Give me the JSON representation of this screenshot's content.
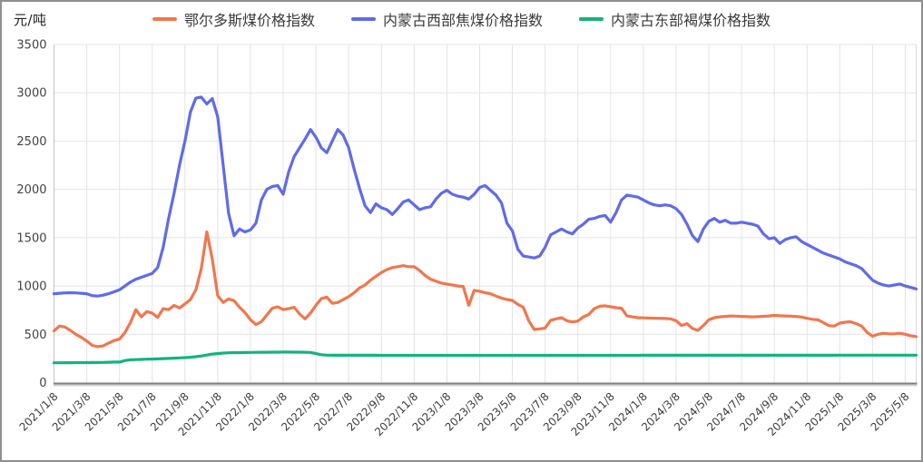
{
  "header": {
    "unit_label": "元/吨"
  },
  "chart_data": {
    "type": "line",
    "title": "",
    "unit_label": "元/吨",
    "xlabel": "",
    "ylabel": "元/吨",
    "ylim": [
      0,
      3500
    ],
    "y_ticks": [
      0,
      500,
      1000,
      1500,
      2000,
      2500,
      3000,
      3500
    ],
    "grid": true,
    "legend_position": "top",
    "x": [
      "2021/1/8",
      "2021/1/18",
      "2021/1/28",
      "2021/2/8",
      "2021/2/18",
      "2021/2/28",
      "2021/3/8",
      "2021/3/18",
      "2021/3/28",
      "2021/4/8",
      "2021/4/18",
      "2021/4/28",
      "2021/5/8",
      "2021/5/18",
      "2021/5/28",
      "2021/6/8",
      "2021/6/18",
      "2021/6/28",
      "2021/7/8",
      "2021/7/18",
      "2021/7/28",
      "2021/8/8",
      "2021/8/18",
      "2021/8/28",
      "2021/9/8",
      "2021/9/18",
      "2021/9/28",
      "2021/10/8",
      "2021/10/18",
      "2021/10/28",
      "2021/11/8",
      "2021/11/18",
      "2021/11/28",
      "2021/12/8",
      "2021/12/18",
      "2021/12/28",
      "2022/1/8",
      "2022/1/18",
      "2022/1/28",
      "2022/2/8",
      "2022/2/18",
      "2022/2/28",
      "2022/3/8",
      "2022/3/18",
      "2022/3/28",
      "2022/4/8",
      "2022/4/18",
      "2022/4/28",
      "2022/5/8",
      "2022/5/18",
      "2022/5/28",
      "2022/6/8",
      "2022/6/18",
      "2022/6/28",
      "2022/7/8",
      "2022/7/18",
      "2022/7/28",
      "2022/8/8",
      "2022/8/18",
      "2022/8/28",
      "2022/9/8",
      "2022/9/18",
      "2022/9/28",
      "2022/10/8",
      "2022/10/18",
      "2022/10/28",
      "2022/11/8",
      "2022/11/18",
      "2022/11/28",
      "2022/12/8",
      "2022/12/18",
      "2022/12/28",
      "2023/1/8",
      "2023/1/18",
      "2023/1/28",
      "2023/2/8",
      "2023/2/18",
      "2023/2/28",
      "2023/3/8",
      "2023/3/18",
      "2023/3/28",
      "2023/4/8",
      "2023/4/18",
      "2023/4/28",
      "2023/5/8",
      "2023/5/18",
      "2023/5/28",
      "2023/6/8",
      "2023/6/18",
      "2023/6/28",
      "2023/7/8",
      "2023/7/18",
      "2023/7/28",
      "2023/8/8",
      "2023/8/18",
      "2023/8/28",
      "2023/9/8",
      "2023/9/18",
      "2023/9/28",
      "2023/10/8",
      "2023/10/18",
      "2023/10/28",
      "2023/11/8",
      "2023/11/18",
      "2023/11/28",
      "2023/12/8",
      "2023/12/18",
      "2023/12/28",
      "2024/1/8",
      "2024/1/18",
      "2024/1/28",
      "2024/2/8",
      "2024/2/18",
      "2024/2/28",
      "2024/3/8",
      "2024/3/18",
      "2024/3/28",
      "2024/4/8",
      "2024/4/18",
      "2024/4/28",
      "2024/5/8",
      "2024/5/18",
      "2024/5/28",
      "2024/6/8",
      "2024/6/18",
      "2024/6/28",
      "2024/7/8",
      "2024/7/18",
      "2024/7/28",
      "2024/8/8",
      "2024/8/18",
      "2024/8/28",
      "2024/9/8",
      "2024/9/18",
      "2024/9/28",
      "2024/10/8",
      "2024/10/18",
      "2024/10/28",
      "2024/11/8",
      "2024/11/18",
      "2024/11/28",
      "2024/12/8",
      "2024/12/18",
      "2024/12/28",
      "2025/1/8",
      "2025/1/18",
      "2025/1/28",
      "2025/2/8",
      "2025/2/18",
      "2025/2/28",
      "2025/3/8",
      "2025/3/18",
      "2025/3/28",
      "2025/4/8",
      "2025/4/18",
      "2025/4/28",
      "2025/5/8",
      "2025/5/18",
      "2025/5/28"
    ],
    "x_tick_labels": [
      "2021/1/8",
      "2021/3/8",
      "2021/5/8",
      "2021/7/8",
      "2021/9/8",
      "2021/11/8",
      "2022/1/8",
      "2022/3/8",
      "2022/5/8",
      "2022/7/8",
      "2022/9/8",
      "2022/11/8",
      "2023/1/8",
      "2023/3/8",
      "2023/5/8",
      "2023/7/8",
      "2023/9/8",
      "2023/11/8",
      "2024/1/8",
      "2024/3/8",
      "2024/5/8",
      "2024/7/8",
      "2024/9/8",
      "2024/11/8",
      "2025/1/8",
      "2025/3/8",
      "2025/5/8"
    ],
    "series": [
      {
        "id": "ordos-coal-index",
        "name": "鄂尔多斯煤价格指数",
        "color": "#F0774E",
        "values": [
          535,
          585,
          575,
          540,
          500,
          468,
          430,
          385,
          372,
          380,
          408,
          435,
          450,
          520,
          620,
          755,
          680,
          735,
          720,
          675,
          765,
          755,
          800,
          772,
          815,
          860,
          960,
          1180,
          1560,
          1280,
          900,
          830,
          865,
          848,
          780,
          725,
          650,
          600,
          630,
          700,
          770,
          785,
          755,
          765,
          780,
          710,
          660,
          720,
          800,
          870,
          885,
          820,
          830,
          860,
          890,
          930,
          980,
          1010,
          1060,
          1100,
          1140,
          1170,
          1190,
          1200,
          1210,
          1200,
          1200,
          1160,
          1110,
          1070,
          1050,
          1030,
          1020,
          1010,
          1000,
          995,
          800,
          955,
          945,
          930,
          920,
          895,
          875,
          860,
          850,
          810,
          780,
          640,
          550,
          555,
          565,
          645,
          660,
          672,
          640,
          628,
          636,
          680,
          705,
          765,
          790,
          795,
          785,
          775,
          770,
          690,
          680,
          672,
          670,
          668,
          666,
          665,
          663,
          660,
          640,
          592,
          610,
          560,
          540,
          590,
          650,
          672,
          680,
          685,
          690,
          688,
          685,
          682,
          680,
          682,
          686,
          690,
          695,
          692,
          690,
          688,
          684,
          678,
          665,
          655,
          650,
          620,
          590,
          585,
          615,
          625,
          630,
          610,
          585,
          520,
          480,
          500,
          510,
          505,
          505,
          510,
          500,
          485,
          475
        ]
      },
      {
        "id": "west-coking-coal-index",
        "name": "内蒙古西部焦煤价格指数",
        "color": "#5F6BE8",
        "values": [
          920,
          925,
          928,
          930,
          928,
          925,
          920,
          900,
          895,
          905,
          920,
          940,
          960,
          1000,
          1040,
          1070,
          1090,
          1110,
          1130,
          1190,
          1400,
          1700,
          1960,
          2250,
          2500,
          2800,
          2945,
          2955,
          2885,
          2940,
          2750,
          2250,
          1750,
          1520,
          1590,
          1560,
          1580,
          1650,
          1890,
          2000,
          2030,
          2040,
          1950,
          2180,
          2340,
          2430,
          2520,
          2620,
          2540,
          2430,
          2380,
          2500,
          2620,
          2560,
          2430,
          2210,
          2010,
          1830,
          1760,
          1850,
          1810,
          1790,
          1740,
          1800,
          1870,
          1890,
          1840,
          1790,
          1810,
          1820,
          1900,
          1960,
          1990,
          1950,
          1930,
          1920,
          1900,
          1950,
          2020,
          2040,
          1990,
          1940,
          1860,
          1650,
          1570,
          1380,
          1310,
          1300,
          1290,
          1310,
          1400,
          1530,
          1560,
          1590,
          1560,
          1540,
          1600,
          1640,
          1690,
          1700,
          1720,
          1730,
          1660,
          1760,
          1890,
          1940,
          1930,
          1920,
          1890,
          1860,
          1840,
          1830,
          1840,
          1830,
          1800,
          1740,
          1640,
          1520,
          1460,
          1590,
          1670,
          1700,
          1660,
          1680,
          1650,
          1650,
          1660,
          1650,
          1640,
          1620,
          1540,
          1490,
          1500,
          1440,
          1480,
          1500,
          1510,
          1460,
          1430,
          1400,
          1370,
          1340,
          1320,
          1300,
          1280,
          1250,
          1230,
          1210,
          1180,
          1120,
          1060,
          1030,
          1010,
          1000,
          1010,
          1020,
          1000,
          985,
          970
        ]
      },
      {
        "id": "east-lignite-index",
        "name": "内蒙古东部褐煤价格指数",
        "color": "#14B37D",
        "values": [
          205,
          205,
          206,
          206,
          207,
          207,
          207,
          208,
          208,
          209,
          210,
          212,
          212,
          228,
          236,
          238,
          240,
          242,
          243,
          245,
          248,
          250,
          253,
          256,
          258,
          262,
          268,
          275,
          285,
          295,
          300,
          305,
          308,
          310,
          310,
          311,
          312,
          313,
          314,
          314,
          315,
          315,
          316,
          316,
          315,
          315,
          314,
          312,
          300,
          288,
          284,
          283,
          283,
          283,
          283,
          283,
          283,
          283,
          283,
          283,
          282,
          282,
          282,
          282,
          282,
          282,
          282,
          282,
          282,
          282,
          282,
          282,
          282,
          282,
          282,
          282,
          282,
          282,
          282,
          282,
          282,
          282,
          282,
          282,
          282,
          282,
          282,
          282,
          282,
          282,
          282,
          282,
          282,
          282,
          282,
          282,
          282,
          282,
          282,
          282,
          282,
          282,
          282,
          282,
          282,
          282,
          282,
          282,
          283,
          283,
          283,
          283,
          283,
          283,
          283,
          283,
          283,
          283,
          283,
          283,
          283,
          283,
          283,
          283,
          283,
          283,
          283,
          283,
          283,
          283,
          283,
          283,
          283,
          283,
          283,
          283,
          283,
          283,
          283,
          283,
          283,
          283,
          283,
          283,
          284,
          284,
          284,
          284,
          284,
          284,
          284,
          284,
          284,
          284,
          284,
          284,
          284,
          284,
          284
        ]
      }
    ]
  },
  "style": {
    "grid_color": "#e4e4e4",
    "axis_color": "#808080",
    "axis_shadow_color": "#d2d2d2",
    "tick_label_color": "#3d3d3d",
    "y_label_color": "#444444"
  }
}
